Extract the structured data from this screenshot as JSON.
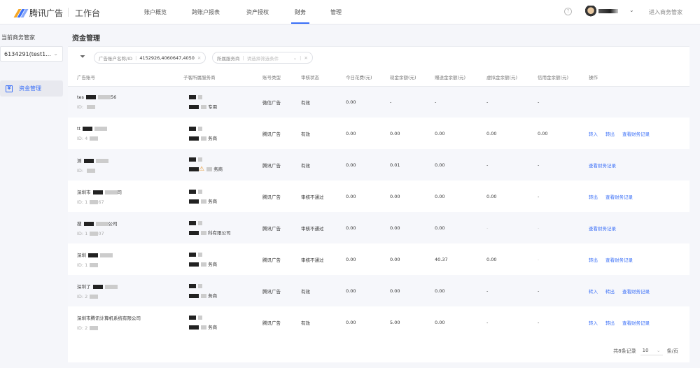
{
  "header": {
    "brand": "腾讯广告",
    "workspace": "工作台",
    "nav": [
      "账户概览",
      "跨账户报表",
      "资产授权",
      "财务",
      "管理"
    ],
    "active_nav": "财务",
    "user_menu_chevron": "⌄",
    "enter_label": "进入商务管家",
    "help": "?"
  },
  "sidebar": {
    "label": "当前商务管家",
    "select_value": "6134291(test1...",
    "items": [
      {
        "label": "资金管理",
        "icon": "finance-icon"
      }
    ]
  },
  "page": {
    "title": "资金管理"
  },
  "filters": [
    {
      "label": "广告账户名称/ID",
      "value": "4152926,4060647,4050"
    },
    {
      "label": "所属服务商",
      "placeholder": "请选择筛选条件"
    }
  ],
  "table": {
    "columns": [
      "广告账号",
      "子客所属服务商",
      "账号类型",
      "审核状态",
      "今日花费(元)",
      "现金余额(元)",
      "赠送金余额(元)",
      "虚拟金余额(元)",
      "信用金余额(元)",
      "操作"
    ],
    "rows": [
      {
        "name": "tes",
        "name_tail": "56",
        "id": "ID: ",
        "provider": "专用",
        "type": "微信广告",
        "status": "有效",
        "spend": "0.00",
        "cash": "-",
        "gift": "-",
        "virtual": "-",
        "credit": "-",
        "ops": []
      },
      {
        "name": "tt",
        "name_tail": "",
        "id": "ID: 4",
        "provider": "务商",
        "type": "腾讯广告",
        "status": "有效",
        "spend": "0.00",
        "cash": "0.00",
        "gift": "0.00",
        "virtual": "0.00",
        "credit": "0.00",
        "ops": [
          "转入",
          "转出",
          "查看财务记录"
        ]
      },
      {
        "name": "测",
        "name_tail": "",
        "id": "ID: ",
        "provider": "务商",
        "type": "腾讯广告",
        "status": "有效",
        "spend": "0.00",
        "cash": "0.01",
        "gift": "0.00",
        "virtual": "-",
        "credit": "-",
        "ops": [
          "查看财务记录"
        ]
      },
      {
        "name": "深圳市",
        "name_tail": "司",
        "id": "ID: 1",
        "id_tail": "67",
        "provider": "务商",
        "type": "腾讯广告",
        "status": "审核不通过",
        "spend": "0.00",
        "cash": "0.00",
        "gift": "0.00",
        "virtual": "0.00",
        "credit": "-",
        "ops": [
          "转出",
          "查看财务记录"
        ]
      },
      {
        "name": "搜",
        "name_tail": "公司",
        "id": "ID: 1",
        "id_tail": "07",
        "provider": "科有限公司",
        "type": "腾讯广告",
        "status": "审核不通过",
        "spend": "0.00",
        "cash": "0.00",
        "gift": "0.00",
        "virtual": "-",
        "credit": "-",
        "ops": [
          "查看财务记录"
        ]
      },
      {
        "name": "深圳",
        "name_tail": "",
        "id": "ID: 1",
        "provider": "务商",
        "type": "腾讯广告",
        "status": "审核不通过",
        "spend": "0.00",
        "cash": "0.00",
        "gift": "40.37",
        "virtual": "0.00",
        "credit": "-",
        "ops": [
          "转出",
          "查看财务记录"
        ]
      },
      {
        "name": "深圳了",
        "name_tail": "",
        "id": "ID: 2",
        "provider": "务商",
        "type": "腾讯广告",
        "status": "有效",
        "spend": "0.00",
        "cash": "0.00",
        "gift": "0.00",
        "virtual": "-",
        "credit": "-",
        "ops": [
          "转入",
          "转出",
          "查看财务记录"
        ]
      },
      {
        "name": "深圳市腾讯计算机系统有限公司",
        "name_tail": "",
        "id": "ID: 2",
        "provider": "务商",
        "type": "腾讯广告",
        "status": "有效",
        "spend": "0.00",
        "cash": "5.00",
        "gift": "0.00",
        "virtual": "-",
        "credit": "-",
        "ops": [
          "转入",
          "转出",
          "查看财务记录"
        ]
      }
    ]
  },
  "pagination": {
    "total": "共8条记录",
    "page_size": "10",
    "unit": "条/页"
  },
  "colors": {
    "accent": "#3a6ff7",
    "warning": "#e8962a"
  }
}
